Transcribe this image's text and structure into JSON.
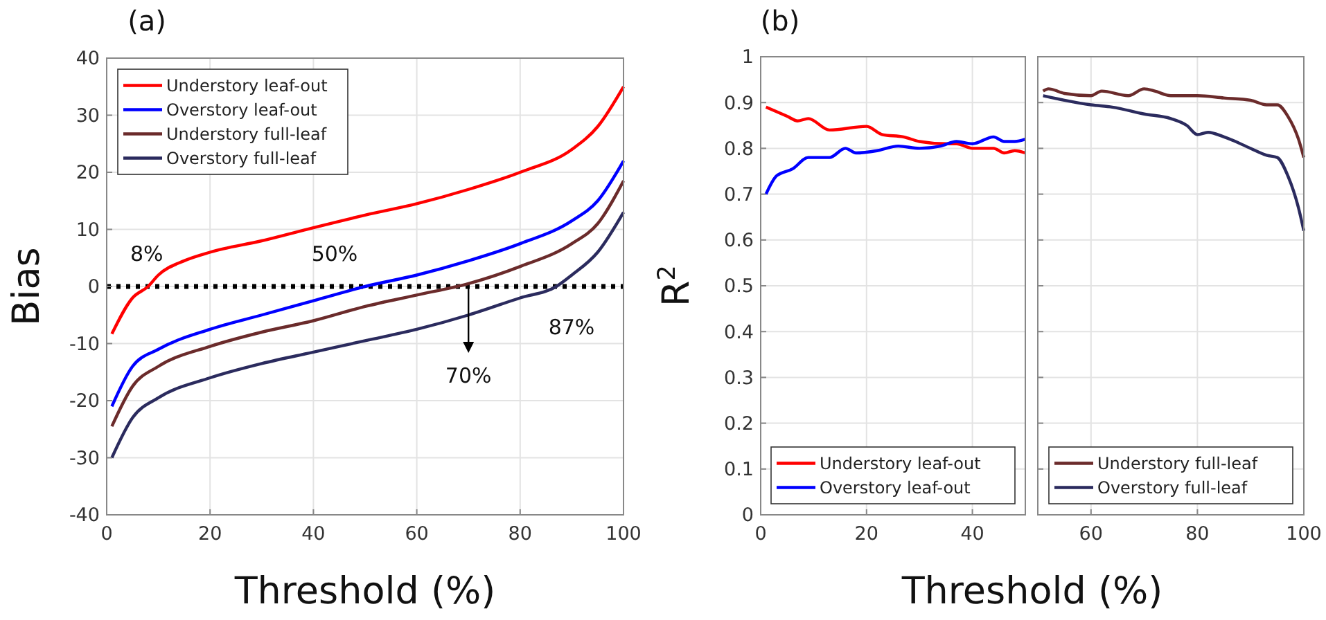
{
  "chart_data": [
    {
      "type": "line",
      "title": "(a)",
      "xlabel": "Threshold (%)",
      "ylabel": "Bias",
      "xlim": [
        0,
        100
      ],
      "xticks": [
        0,
        20,
        40,
        60,
        80,
        100
      ],
      "ylim": [
        -40,
        40
      ],
      "yticks": [
        -40,
        -30,
        -20,
        -10,
        0,
        10,
        20,
        30,
        40
      ],
      "grid": true,
      "legend": "top left",
      "line_style": "solid",
      "marker": "none",
      "ref_lines": [
        {
          "axis": "y",
          "value": 0,
          "color": "#000000",
          "line_style": "dotted"
        }
      ],
      "annotations": [
        {
          "text": "8%",
          "x": 8,
          "y": 0
        },
        {
          "text": "50%",
          "x": 50,
          "y": 0
        },
        {
          "text": "70%",
          "x": 70,
          "y": 0
        },
        {
          "text": "87%",
          "x": 87,
          "y": 0
        }
      ],
      "series": [
        {
          "name": "Understory leaf-out",
          "color": "#ff0000",
          "x": [
            1,
            5,
            8,
            10,
            15,
            20,
            30,
            40,
            50,
            60,
            70,
            80,
            90,
            95,
            100
          ],
          "values": [
            -8.3,
            -2,
            0,
            2,
            4.5,
            6,
            8,
            10.3,
            12.5,
            14.5,
            17,
            20,
            24,
            28,
            35
          ]
        },
        {
          "name": "Overstory leaf-out",
          "color": "#0000ff",
          "x": [
            1,
            5,
            10,
            20,
            30,
            40,
            50,
            60,
            70,
            80,
            90,
            95,
            100
          ],
          "values": [
            -21,
            -14,
            -11,
            -7.5,
            -5,
            -2.5,
            0,
            2,
            4.5,
            7.5,
            11.5,
            15,
            22
          ]
        },
        {
          "name": "Understory full-leaf",
          "color": "#6b2b2b",
          "x": [
            1,
            5,
            10,
            20,
            30,
            40,
            50,
            60,
            70,
            80,
            90,
            95,
            100
          ],
          "values": [
            -24.5,
            -17.5,
            -14,
            -10.5,
            -8,
            -6,
            -3.5,
            -1.5,
            0.5,
            3.5,
            7.5,
            11,
            18.5
          ]
        },
        {
          "name": "Overstory full-leaf",
          "color": "#2b2b5e",
          "x": [
            1,
            5,
            10,
            20,
            30,
            40,
            50,
            60,
            70,
            80,
            87,
            90,
            95,
            100
          ],
          "values": [
            -30,
            -23,
            -19.5,
            -16,
            -13.5,
            -11.5,
            -9.5,
            -7.5,
            -5,
            -2,
            0,
            2,
            6,
            13
          ]
        }
      ]
    },
    {
      "type": "line",
      "title": "(b)",
      "xlabel": "Threshold (%)",
      "ylabel": "R$^{2}$",
      "xlim": [
        0,
        50
      ],
      "xticks": [
        0,
        20,
        40
      ],
      "ylim": [
        0,
        1
      ],
      "yticks": [
        0,
        0.1,
        0.2,
        0.3,
        0.4,
        0.5,
        0.6,
        0.7,
        0.8,
        0.9,
        1
      ],
      "grid": true,
      "legend": "bottom",
      "line_style": "solid",
      "marker": "none",
      "series": [
        {
          "name": "Understory leaf-out",
          "color": "#ff0000",
          "x": [
            1,
            5,
            7,
            9,
            13,
            20,
            23,
            27,
            30,
            35,
            37,
            40,
            44,
            46,
            48,
            50
          ],
          "values": [
            0.89,
            0.87,
            0.86,
            0.865,
            0.84,
            0.848,
            0.83,
            0.825,
            0.815,
            0.81,
            0.81,
            0.8,
            0.8,
            0.79,
            0.795,
            0.79
          ]
        },
        {
          "name": "Overstory leaf-out",
          "color": "#0000ff",
          "x": [
            1,
            3,
            6,
            9,
            13,
            16,
            18,
            22,
            26,
            30,
            34,
            37,
            40,
            44,
            46,
            48,
            50
          ],
          "values": [
            0.7,
            0.74,
            0.755,
            0.78,
            0.78,
            0.8,
            0.79,
            0.795,
            0.805,
            0.8,
            0.805,
            0.815,
            0.81,
            0.825,
            0.815,
            0.815,
            0.82
          ]
        }
      ]
    },
    {
      "type": "line",
      "xlim": [
        50,
        100
      ],
      "xticks": [
        60,
        80,
        100
      ],
      "ylim": [
        0,
        1
      ],
      "yticks": [
        0,
        0.1,
        0.2,
        0.3,
        0.4,
        0.5,
        0.6,
        0.7,
        0.8,
        0.9,
        1
      ],
      "tick_labels": "x",
      "grid": true,
      "legend": "bottom",
      "line_style": "solid",
      "marker": "none",
      "series": [
        {
          "name": "Understory full-leaf",
          "color": "#6b2b2b",
          "x": [
            51,
            52,
            55,
            60,
            62,
            67,
            70,
            72,
            75,
            80,
            85,
            90,
            93,
            95,
            97,
            99,
            100
          ],
          "values": [
            0.925,
            0.93,
            0.92,
            0.915,
            0.925,
            0.915,
            0.93,
            0.925,
            0.915,
            0.915,
            0.91,
            0.905,
            0.895,
            0.895,
            0.87,
            0.82,
            0.78
          ]
        },
        {
          "name": "Overstory full-leaf",
          "color": "#2b2b5e",
          "x": [
            51,
            55,
            60,
            64,
            70,
            75,
            78,
            80,
            82,
            85,
            90,
            93,
            95,
            97,
            99,
            100
          ],
          "values": [
            0.915,
            0.905,
            0.895,
            0.89,
            0.875,
            0.865,
            0.85,
            0.83,
            0.835,
            0.825,
            0.8,
            0.785,
            0.78,
            0.74,
            0.67,
            0.62
          ]
        }
      ]
    }
  ]
}
